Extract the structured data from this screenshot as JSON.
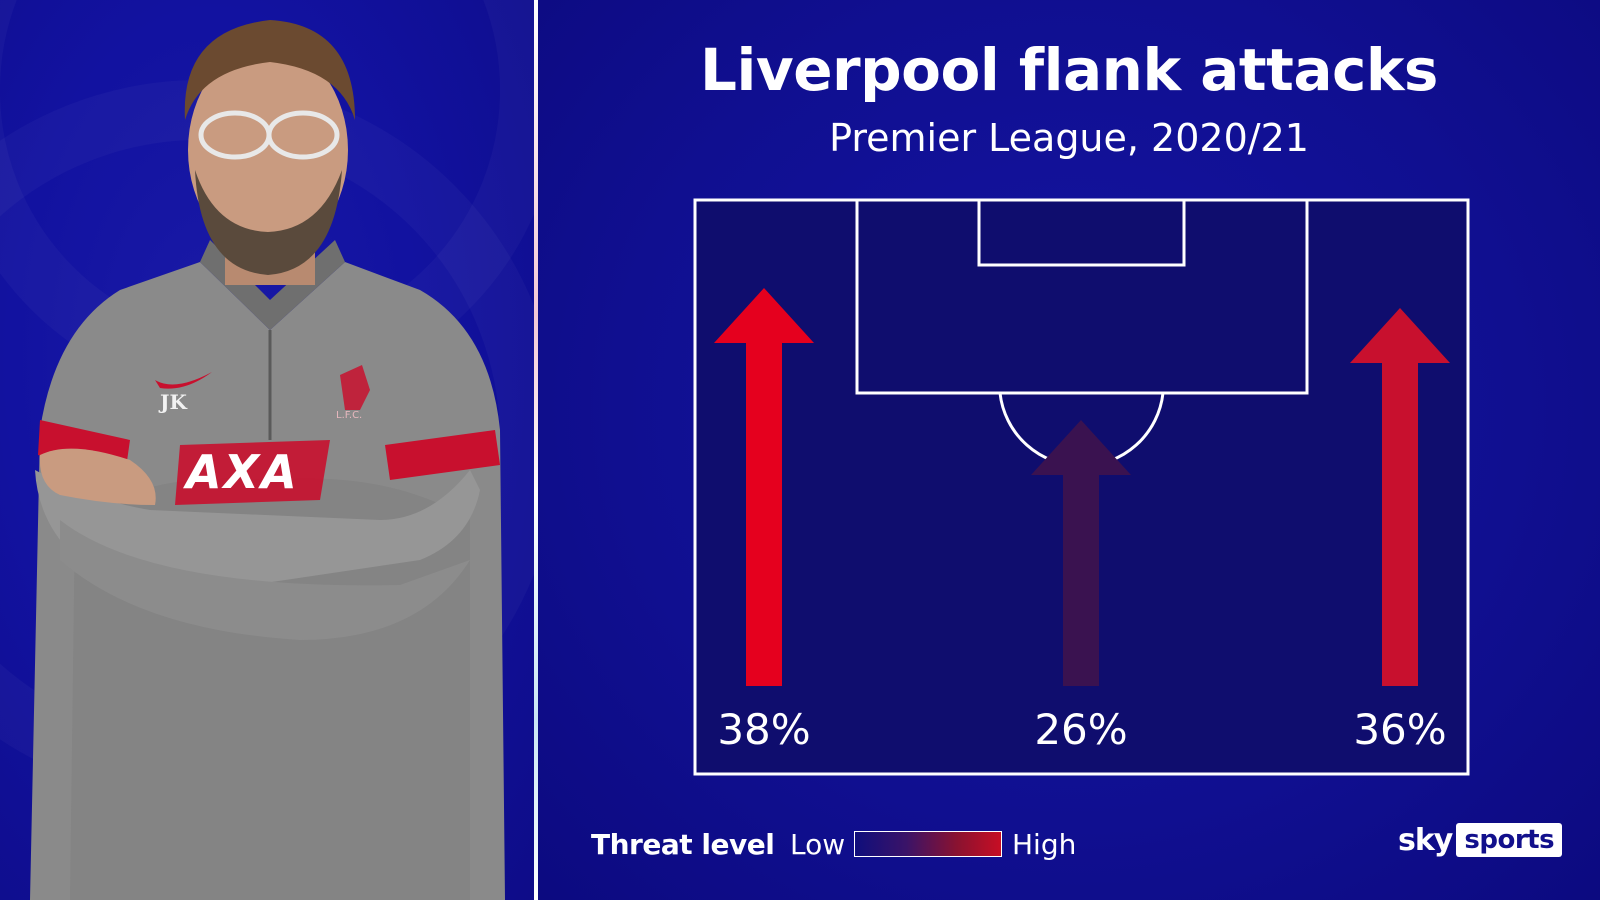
{
  "title": "Liverpool flank attacks",
  "subtitle": "Premier League, 2020/21",
  "portrait": {
    "shirt_initials": "JK",
    "shirt_sponsor": "AXA",
    "crest_text": "L.F.C."
  },
  "arrows": [
    {
      "label": "38%",
      "value": 38,
      "threat": "high",
      "color": "#e5001e"
    },
    {
      "label": "26%",
      "value": 26,
      "threat": "low",
      "color": "#3a1250"
    },
    {
      "label": "36%",
      "value": 36,
      "threat": "high",
      "color": "#c8102e"
    }
  ],
  "legend": {
    "title": "Threat level",
    "low": "Low",
    "high": "High",
    "colors": {
      "low": "#0f0e7c",
      "high": "#c70e24"
    }
  },
  "logo": {
    "sky": "sky",
    "sports": "sports"
  },
  "colors": {
    "background": "#12108c",
    "pitch": "#0f0d6e"
  }
}
